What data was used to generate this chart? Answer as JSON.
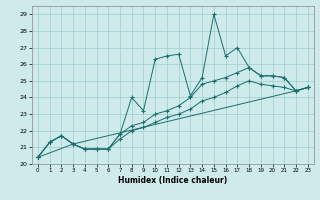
{
  "xlabel": "Humidex (Indice chaleur)",
  "bg_color": "#ceeaea",
  "grid_color": "#a0cccc",
  "line_color": "#1a6e6e",
  "xlim": [
    -0.5,
    23.5
  ],
  "ylim": [
    20,
    29.5
  ],
  "xticks": [
    0,
    1,
    2,
    3,
    4,
    5,
    6,
    7,
    8,
    9,
    10,
    11,
    12,
    13,
    14,
    15,
    16,
    17,
    18,
    19,
    20,
    21,
    22,
    23
  ],
  "yticks": [
    20,
    21,
    22,
    23,
    24,
    25,
    26,
    27,
    28,
    29
  ],
  "series": [
    {
      "x": [
        0,
        1,
        2,
        3,
        4,
        5,
        6,
        7,
        8,
        9,
        10,
        11,
        12,
        13,
        14,
        15,
        16,
        17,
        18,
        19,
        20,
        21,
        22,
        23
      ],
      "y": [
        20.4,
        21.3,
        21.7,
        21.2,
        20.9,
        20.9,
        20.9,
        21.8,
        24.0,
        23.2,
        26.3,
        26.5,
        26.6,
        24.1,
        25.2,
        29.0,
        26.5,
        27.0,
        25.8,
        25.3,
        25.3,
        25.2,
        24.4,
        24.6
      ]
    },
    {
      "x": [
        0,
        1,
        2,
        3,
        4,
        5,
        6,
        7,
        8,
        9,
        10,
        11,
        12,
        13,
        14,
        15,
        16,
        17,
        18,
        19,
        20,
        21,
        22,
        23
      ],
      "y": [
        20.4,
        21.3,
        21.7,
        21.2,
        20.9,
        20.9,
        20.9,
        21.8,
        22.3,
        22.5,
        23.0,
        23.2,
        23.5,
        24.0,
        24.8,
        25.0,
        25.2,
        25.5,
        25.8,
        25.3,
        25.3,
        25.2,
        24.4,
        24.6
      ]
    },
    {
      "x": [
        0,
        1,
        2,
        3,
        4,
        5,
        6,
        7,
        8,
        9,
        10,
        11,
        12,
        13,
        14,
        15,
        16,
        17,
        18,
        19,
        20,
        21,
        22,
        23
      ],
      "y": [
        20.4,
        21.3,
        21.7,
        21.2,
        20.9,
        20.9,
        20.9,
        21.5,
        22.0,
        22.2,
        22.5,
        22.8,
        23.0,
        23.3,
        23.8,
        24.0,
        24.3,
        24.7,
        25.0,
        24.8,
        24.7,
        24.6,
        24.4,
        24.6
      ]
    },
    {
      "x": [
        0,
        3,
        22,
        23
      ],
      "y": [
        20.4,
        21.2,
        24.4,
        24.6
      ]
    }
  ]
}
